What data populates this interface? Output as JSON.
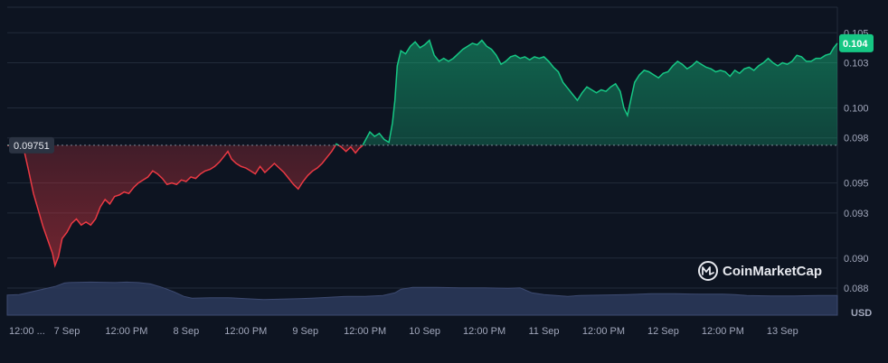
{
  "chart_data": {
    "type": "area",
    "currency_label": "USD",
    "brand": "CoinMarketCap",
    "baseline_label": "0.09751",
    "baseline_value": 0.09751,
    "current_label": "0.104",
    "current_value": 0.1043,
    "ylim": [
      0.0862,
      0.1067
    ],
    "y_ticks": [
      {
        "value": 0.105,
        "label": "0.105"
      },
      {
        "value": 0.103,
        "label": "0.103"
      },
      {
        "value": 0.1,
        "label": "0.100"
      },
      {
        "value": 0.098,
        "label": "0.098"
      },
      {
        "value": 0.095,
        "label": "0.095"
      },
      {
        "value": 0.093,
        "label": "0.093"
      },
      {
        "value": 0.09,
        "label": "0.090"
      },
      {
        "value": 0.088,
        "label": "0.088"
      }
    ],
    "x_ticks": [
      {
        "t": 0.1,
        "label": "12:00 ..."
      },
      {
        "t": 0.5,
        "label": "7 Sep"
      },
      {
        "t": 1.0,
        "label": "12:00 PM"
      },
      {
        "t": 1.5,
        "label": "8 Sep"
      },
      {
        "t": 2.0,
        "label": "12:00 PM"
      },
      {
        "t": 2.5,
        "label": "9 Sep"
      },
      {
        "t": 3.0,
        "label": "12:00 PM"
      },
      {
        "t": 3.5,
        "label": "10 Sep"
      },
      {
        "t": 4.0,
        "label": "12:00 PM"
      },
      {
        "t": 4.5,
        "label": "11 Sep"
      },
      {
        "t": 5.0,
        "label": "12:00 PM"
      },
      {
        "t": 5.5,
        "label": "12 Sep"
      },
      {
        "t": 6.0,
        "label": "12:00 PM"
      },
      {
        "t": 6.5,
        "label": "13 Sep"
      }
    ],
    "x_range": [
      0.0,
      6.96
    ],
    "price_series": [
      [
        0.0,
        0.0975
      ],
      [
        0.1,
        0.0975
      ],
      [
        0.14,
        0.0972
      ],
      [
        0.18,
        0.0958
      ],
      [
        0.22,
        0.0943
      ],
      [
        0.26,
        0.0932
      ],
      [
        0.3,
        0.0921
      ],
      [
        0.34,
        0.0912
      ],
      [
        0.38,
        0.0903
      ],
      [
        0.4,
        0.0895
      ],
      [
        0.43,
        0.0901
      ],
      [
        0.46,
        0.0913
      ],
      [
        0.5,
        0.0917
      ],
      [
        0.54,
        0.0923
      ],
      [
        0.58,
        0.0926
      ],
      [
        0.62,
        0.0922
      ],
      [
        0.66,
        0.0924
      ],
      [
        0.7,
        0.0922
      ],
      [
        0.74,
        0.0926
      ],
      [
        0.78,
        0.0934
      ],
      [
        0.82,
        0.0939
      ],
      [
        0.86,
        0.0936
      ],
      [
        0.9,
        0.0941
      ],
      [
        0.94,
        0.0942
      ],
      [
        0.98,
        0.0944
      ],
      [
        1.02,
        0.0943
      ],
      [
        1.06,
        0.0947
      ],
      [
        1.1,
        0.095
      ],
      [
        1.14,
        0.0952
      ],
      [
        1.18,
        0.0954
      ],
      [
        1.22,
        0.0958
      ],
      [
        1.26,
        0.0956
      ],
      [
        1.3,
        0.0953
      ],
      [
        1.34,
        0.0949
      ],
      [
        1.38,
        0.095
      ],
      [
        1.42,
        0.0949
      ],
      [
        1.46,
        0.0952
      ],
      [
        1.5,
        0.0951
      ],
      [
        1.54,
        0.0954
      ],
      [
        1.58,
        0.0953
      ],
      [
        1.62,
        0.0956
      ],
      [
        1.66,
        0.0958
      ],
      [
        1.7,
        0.0959
      ],
      [
        1.74,
        0.0961
      ],
      [
        1.78,
        0.0964
      ],
      [
        1.82,
        0.0968
      ],
      [
        1.85,
        0.0971
      ],
      [
        1.88,
        0.0966
      ],
      [
        1.92,
        0.0963
      ],
      [
        1.96,
        0.0961
      ],
      [
        2.0,
        0.096
      ],
      [
        2.04,
        0.0958
      ],
      [
        2.08,
        0.0956
      ],
      [
        2.12,
        0.0961
      ],
      [
        2.16,
        0.0957
      ],
      [
        2.2,
        0.096
      ],
      [
        2.24,
        0.0963
      ],
      [
        2.28,
        0.096
      ],
      [
        2.32,
        0.0957
      ],
      [
        2.36,
        0.0953
      ],
      [
        2.4,
        0.0949
      ],
      [
        2.44,
        0.0946
      ],
      [
        2.48,
        0.0951
      ],
      [
        2.52,
        0.0955
      ],
      [
        2.56,
        0.0958
      ],
      [
        2.6,
        0.096
      ],
      [
        2.64,
        0.0963
      ],
      [
        2.68,
        0.0967
      ],
      [
        2.72,
        0.0971
      ],
      [
        2.76,
        0.0976
      ],
      [
        2.8,
        0.0974
      ],
      [
        2.84,
        0.0971
      ],
      [
        2.88,
        0.0974
      ],
      [
        2.92,
        0.097
      ],
      [
        2.95,
        0.0973
      ],
      [
        2.98,
        0.0975
      ],
      [
        3.0,
        0.0978
      ],
      [
        3.04,
        0.0984
      ],
      [
        3.08,
        0.0981
      ],
      [
        3.12,
        0.0983
      ],
      [
        3.16,
        0.0979
      ],
      [
        3.2,
        0.0977
      ],
      [
        3.23,
        0.099
      ],
      [
        3.25,
        0.1005
      ],
      [
        3.27,
        0.1028
      ],
      [
        3.3,
        0.1038
      ],
      [
        3.34,
        0.1036
      ],
      [
        3.38,
        0.1041
      ],
      [
        3.42,
        0.1044
      ],
      [
        3.46,
        0.104
      ],
      [
        3.5,
        0.1042
      ],
      [
        3.54,
        0.1045
      ],
      [
        3.58,
        0.1035
      ],
      [
        3.62,
        0.1031
      ],
      [
        3.66,
        0.1033
      ],
      [
        3.7,
        0.1031
      ],
      [
        3.74,
        0.1033
      ],
      [
        3.78,
        0.1036
      ],
      [
        3.82,
        0.1039
      ],
      [
        3.86,
        0.1041
      ],
      [
        3.9,
        0.1043
      ],
      [
        3.94,
        0.1042
      ],
      [
        3.98,
        0.1045
      ],
      [
        4.02,
        0.1041
      ],
      [
        4.06,
        0.1039
      ],
      [
        4.1,
        0.1035
      ],
      [
        4.14,
        0.1029
      ],
      [
        4.18,
        0.1031
      ],
      [
        4.22,
        0.1034
      ],
      [
        4.26,
        0.1035
      ],
      [
        4.3,
        0.1033
      ],
      [
        4.34,
        0.1034
      ],
      [
        4.38,
        0.1032
      ],
      [
        4.42,
        0.1034
      ],
      [
        4.46,
        0.1033
      ],
      [
        4.5,
        0.1034
      ],
      [
        4.54,
        0.1031
      ],
      [
        4.58,
        0.1027
      ],
      [
        4.62,
        0.1024
      ],
      [
        4.66,
        0.1017
      ],
      [
        4.7,
        0.1013
      ],
      [
        4.74,
        0.1009
      ],
      [
        4.78,
        0.1005
      ],
      [
        4.82,
        0.101
      ],
      [
        4.86,
        0.1014
      ],
      [
        4.9,
        0.1012
      ],
      [
        4.94,
        0.101
      ],
      [
        4.98,
        0.1012
      ],
      [
        5.02,
        0.1011
      ],
      [
        5.06,
        0.1014
      ],
      [
        5.1,
        0.1016
      ],
      [
        5.14,
        0.1011
      ],
      [
        5.17,
        0.1
      ],
      [
        5.2,
        0.0995
      ],
      [
        5.23,
        0.1006
      ],
      [
        5.26,
        0.1017
      ],
      [
        5.3,
        0.1022
      ],
      [
        5.34,
        0.1025
      ],
      [
        5.38,
        0.1024
      ],
      [
        5.42,
        0.1022
      ],
      [
        5.46,
        0.102
      ],
      [
        5.5,
        0.1023
      ],
      [
        5.54,
        0.1024
      ],
      [
        5.58,
        0.1028
      ],
      [
        5.62,
        0.1031
      ],
      [
        5.66,
        0.1029
      ],
      [
        5.7,
        0.1026
      ],
      [
        5.74,
        0.1028
      ],
      [
        5.78,
        0.1031
      ],
      [
        5.82,
        0.1029
      ],
      [
        5.86,
        0.1027
      ],
      [
        5.9,
        0.1026
      ],
      [
        5.94,
        0.1024
      ],
      [
        5.98,
        0.1025
      ],
      [
        6.02,
        0.1024
      ],
      [
        6.06,
        0.1021
      ],
      [
        6.1,
        0.1025
      ],
      [
        6.14,
        0.1023
      ],
      [
        6.18,
        0.1026
      ],
      [
        6.22,
        0.1027
      ],
      [
        6.26,
        0.1025
      ],
      [
        6.3,
        0.1028
      ],
      [
        6.34,
        0.103
      ],
      [
        6.38,
        0.1033
      ],
      [
        6.42,
        0.103
      ],
      [
        6.46,
        0.1028
      ],
      [
        6.5,
        0.103
      ],
      [
        6.54,
        0.1029
      ],
      [
        6.58,
        0.1031
      ],
      [
        6.62,
        0.1035
      ],
      [
        6.66,
        0.1034
      ],
      [
        6.7,
        0.1031
      ],
      [
        6.74,
        0.1031
      ],
      [
        6.78,
        0.1033
      ],
      [
        6.82,
        0.1033
      ],
      [
        6.86,
        0.1035
      ],
      [
        6.9,
        0.1036
      ],
      [
        6.93,
        0.104
      ],
      [
        6.96,
        0.1043
      ]
    ],
    "volume_series": [
      [
        0.0,
        0.45
      ],
      [
        0.1,
        0.46
      ],
      [
        0.2,
        0.52
      ],
      [
        0.3,
        0.58
      ],
      [
        0.4,
        0.64
      ],
      [
        0.48,
        0.72
      ],
      [
        0.52,
        0.73
      ],
      [
        0.7,
        0.74
      ],
      [
        0.9,
        0.73
      ],
      [
        1.0,
        0.74
      ],
      [
        1.1,
        0.73
      ],
      [
        1.2,
        0.7
      ],
      [
        1.3,
        0.62
      ],
      [
        1.4,
        0.52
      ],
      [
        1.48,
        0.42
      ],
      [
        1.55,
        0.38
      ],
      [
        1.7,
        0.39
      ],
      [
        1.85,
        0.39
      ],
      [
        2.0,
        0.37
      ],
      [
        2.15,
        0.35
      ],
      [
        2.3,
        0.36
      ],
      [
        2.45,
        0.37
      ],
      [
        2.55,
        0.38
      ],
      [
        2.7,
        0.4
      ],
      [
        2.85,
        0.42
      ],
      [
        3.0,
        0.42
      ],
      [
        3.15,
        0.44
      ],
      [
        3.25,
        0.5
      ],
      [
        3.3,
        0.58
      ],
      [
        3.4,
        0.62
      ],
      [
        3.6,
        0.62
      ],
      [
        3.8,
        0.61
      ],
      [
        4.0,
        0.61
      ],
      [
        4.2,
        0.6
      ],
      [
        4.3,
        0.61
      ],
      [
        4.4,
        0.5
      ],
      [
        4.5,
        0.46
      ],
      [
        4.6,
        0.44
      ],
      [
        4.7,
        0.42
      ],
      [
        4.8,
        0.44
      ],
      [
        5.0,
        0.45
      ],
      [
        5.2,
        0.46
      ],
      [
        5.4,
        0.48
      ],
      [
        5.6,
        0.48
      ],
      [
        5.8,
        0.47
      ],
      [
        6.0,
        0.47
      ],
      [
        6.1,
        0.46
      ],
      [
        6.2,
        0.44
      ],
      [
        6.4,
        0.43
      ],
      [
        6.6,
        0.43
      ],
      [
        6.8,
        0.44
      ],
      [
        6.96,
        0.44
      ]
    ],
    "colors": {
      "background": "#0d1421",
      "up": "#16c784",
      "down": "#ea3943",
      "grid": "#222b3a",
      "baseline": "#a6b0c3",
      "volume": "#2d3a5c",
      "tick": "#a1a7bb"
    }
  }
}
